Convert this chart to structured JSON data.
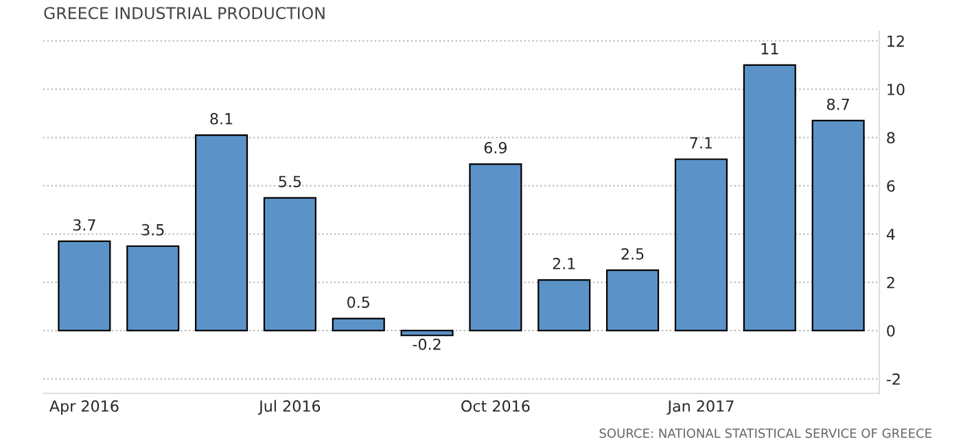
{
  "chart_data": {
    "type": "bar",
    "title": "GREECE INDUSTRIAL PRODUCTION",
    "categories": [
      "Apr 2016",
      null,
      null,
      "Jul 2016",
      null,
      null,
      "Oct 2016",
      null,
      null,
      "Jan 2017",
      null,
      null
    ],
    "values": [
      3.7,
      3.5,
      8.1,
      5.5,
      0.5,
      -0.2,
      6.9,
      2.1,
      2.5,
      7.1,
      11,
      8.7
    ],
    "color": "#5b93c8",
    "data_labels": true,
    "ylim": [
      -2.6,
      12.4
    ],
    "yticks": [
      -2,
      0,
      2,
      4,
      6,
      8,
      10,
      12
    ],
    "grid": "y",
    "annotations": [
      "SOURCE: NATIONAL STATISTICAL SERVICE OF GREECE"
    ]
  }
}
